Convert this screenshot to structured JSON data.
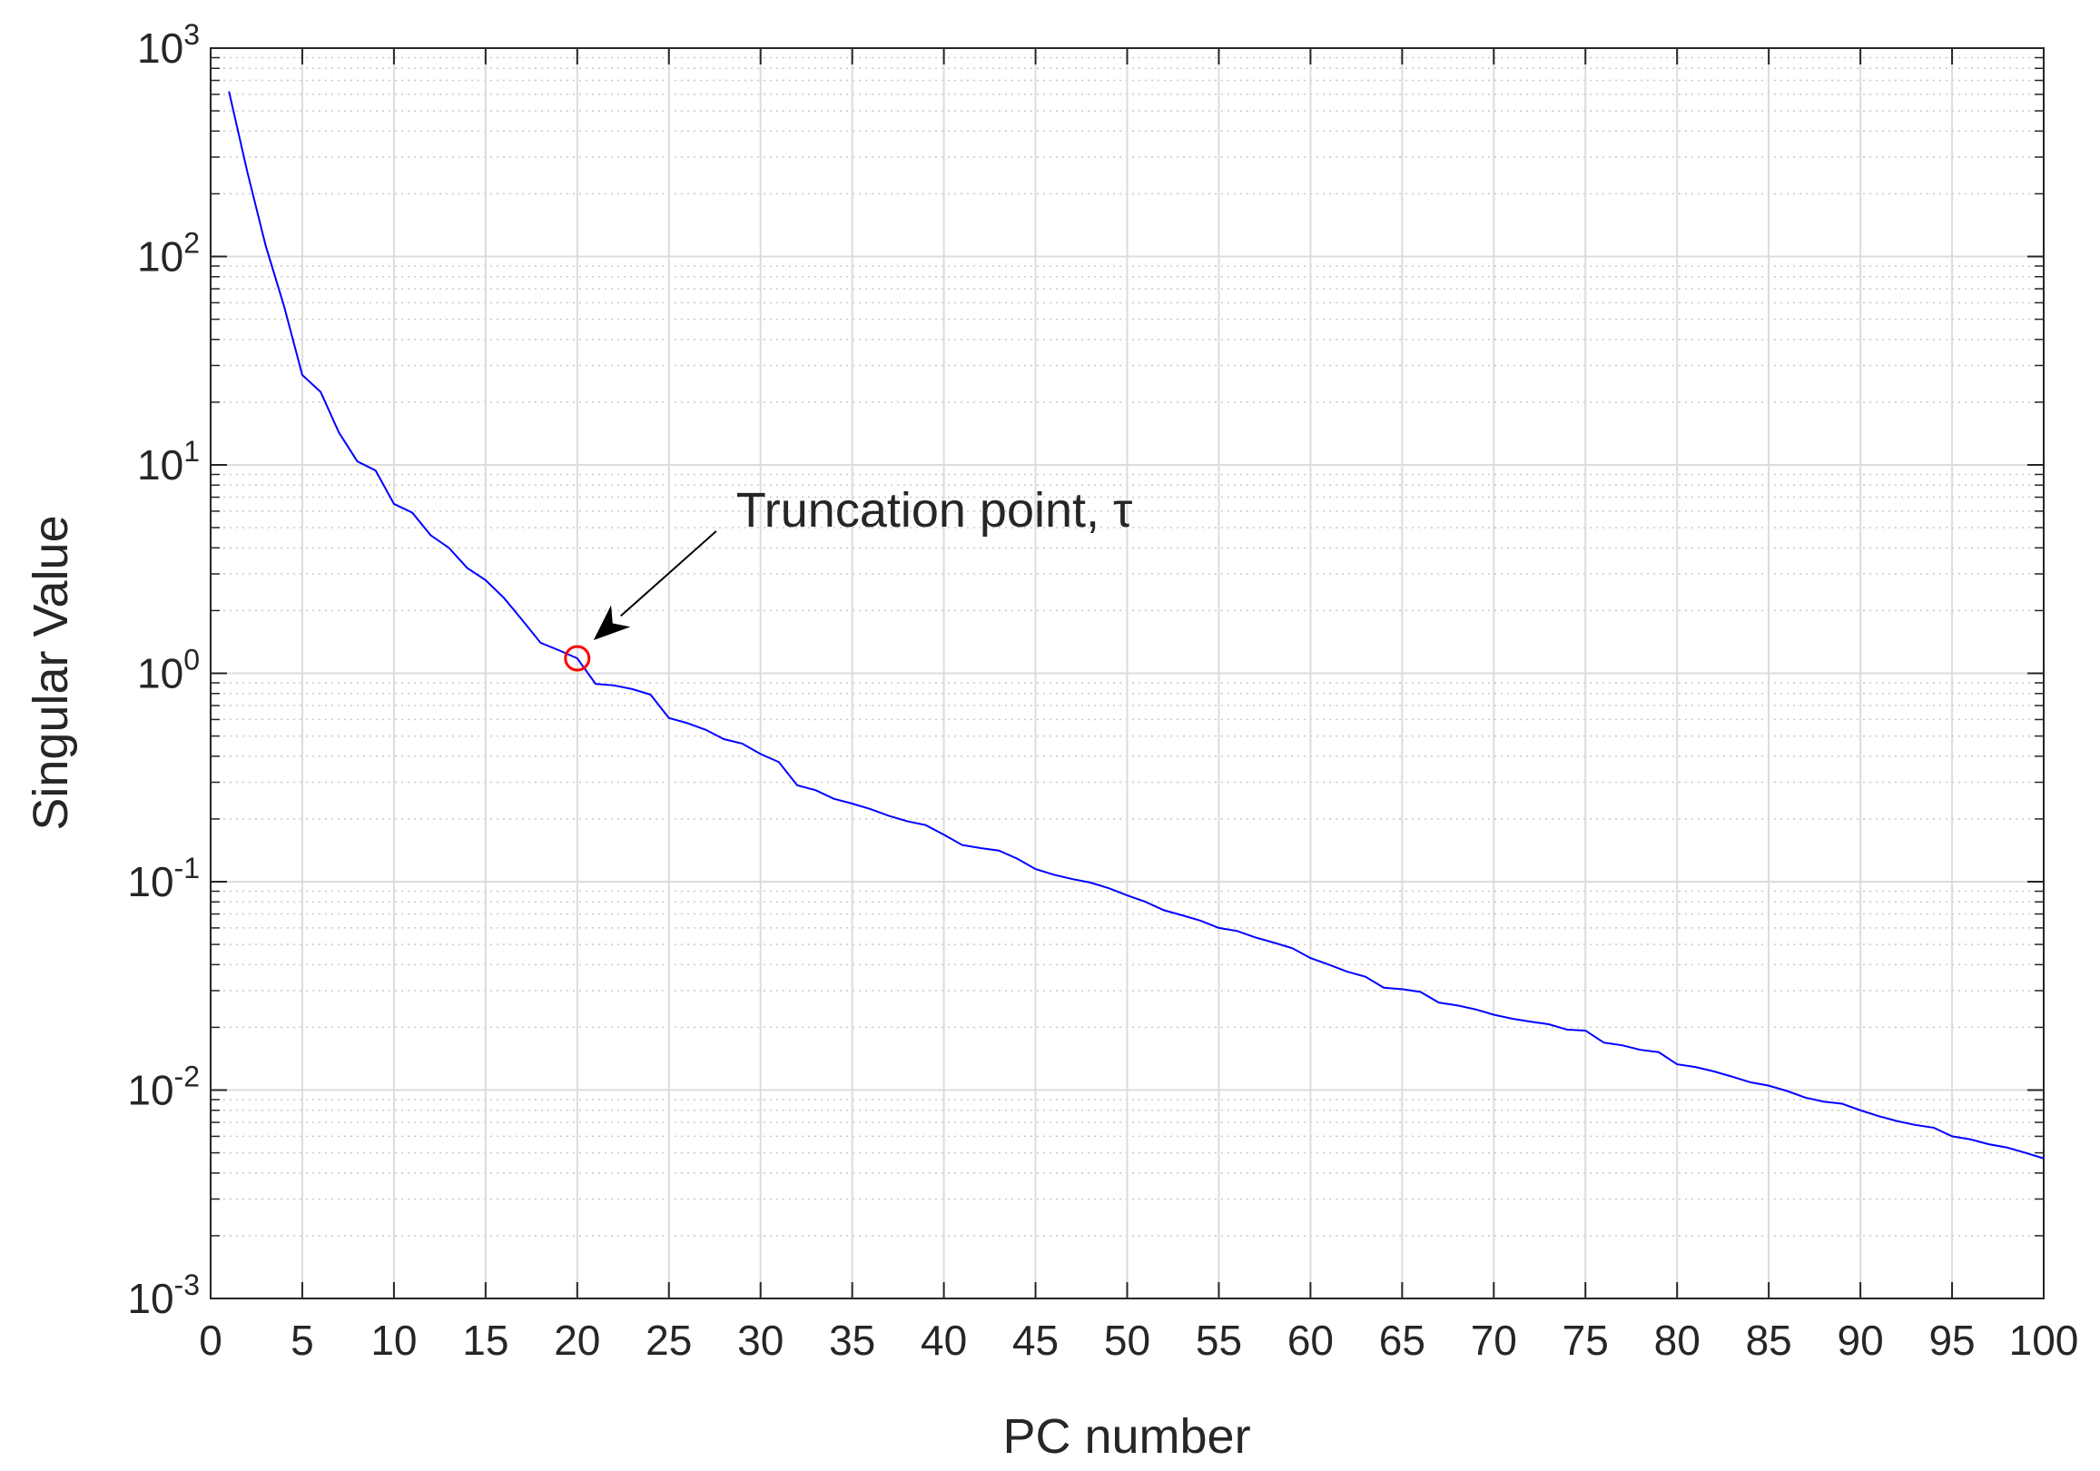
{
  "chart_data": {
    "type": "line",
    "xlabel": "PC number",
    "ylabel": "Singular Value",
    "x": [
      1,
      2,
      3,
      4,
      5,
      6,
      7,
      8,
      9,
      10,
      11,
      12,
      13,
      14,
      15,
      16,
      17,
      18,
      19,
      20,
      21,
      22,
      23,
      24,
      25,
      26,
      27,
      28,
      29,
      30,
      31,
      32,
      33,
      34,
      35,
      36,
      37,
      38,
      39,
      40,
      41,
      42,
      43,
      44,
      45,
      46,
      47,
      48,
      49,
      50,
      51,
      52,
      53,
      54,
      55,
      56,
      57,
      58,
      59,
      60,
      61,
      62,
      63,
      64,
      65,
      66,
      67,
      68,
      69,
      70,
      71,
      72,
      73,
      74,
      75,
      76,
      77,
      78,
      79,
      80,
      81,
      82,
      83,
      84,
      85,
      86,
      87,
      88,
      89,
      90,
      91,
      92,
      93,
      94,
      95,
      96,
      97,
      98,
      99,
      100
    ],
    "series": [
      {
        "name": "Singular values",
        "color": "#0000ff",
        "values": [
          620,
          255,
          113,
          58,
          27,
          22.4,
          14.3,
          10.4,
          9.4,
          6.5,
          5.9,
          4.6,
          4.0,
          3.2,
          2.8,
          2.3,
          1.8,
          1.4,
          1.29,
          1.18,
          0.89,
          0.875,
          0.84,
          0.79,
          0.61,
          0.577,
          0.536,
          0.483,
          0.46,
          0.41,
          0.375,
          0.29,
          0.275,
          0.25,
          0.237,
          0.223,
          0.207,
          0.195,
          0.187,
          0.168,
          0.15,
          0.145,
          0.141,
          0.129,
          0.115,
          0.108,
          0.103,
          0.099,
          0.093,
          0.086,
          0.08,
          0.073,
          0.069,
          0.065,
          0.06,
          0.058,
          0.054,
          0.051,
          0.048,
          0.043,
          0.04,
          0.037,
          0.035,
          0.031,
          0.0305,
          0.0296,
          0.0263,
          0.0255,
          0.0244,
          0.023,
          0.022,
          0.0213,
          0.0207,
          0.0195,
          0.0193,
          0.0169,
          0.0164,
          0.0156,
          0.0152,
          0.0133,
          0.0129,
          0.0123,
          0.0116,
          0.0109,
          0.0105,
          0.0099,
          0.0092,
          0.0088,
          0.0086,
          0.008,
          0.0075,
          0.0071,
          0.0068,
          0.0066,
          0.006,
          0.0058,
          0.0055,
          0.0053,
          0.005,
          0.0047
        ]
      }
    ],
    "highlight": {
      "x": 20,
      "y": 1.18,
      "color": "#ff0000"
    },
    "annotation": "Truncation point, τ",
    "xlim": [
      0,
      100
    ],
    "xticks": [
      0,
      5,
      10,
      15,
      20,
      25,
      30,
      35,
      40,
      45,
      50,
      55,
      60,
      65,
      70,
      75,
      80,
      85,
      90,
      95,
      100
    ],
    "ylim": [
      0.001,
      1000
    ],
    "yticks": [
      {
        "value": 0.001,
        "label": "10^-3"
      },
      {
        "value": 0.01,
        "label": "10^-2"
      },
      {
        "value": 0.1,
        "label": "10^-1"
      },
      {
        "value": 1,
        "label": "10^0"
      },
      {
        "value": 10,
        "label": "10^1"
      },
      {
        "value": 100,
        "label": "10^2"
      },
      {
        "value": 1000,
        "label": "10^3"
      }
    ],
    "log_y": true,
    "grid": true,
    "minor_grid": true
  }
}
